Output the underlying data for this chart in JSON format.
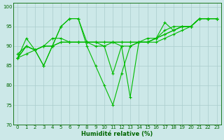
{
  "xlabel": "Humidité relative (%)",
  "ylabel": "",
  "bg_color": "#cce8e8",
  "grid_color": "#aacccc",
  "line_color": "#00bb00",
  "xlim": [
    -0.5,
    23.5
  ],
  "ylim": [
    70,
    101
  ],
  "yticks": [
    70,
    75,
    80,
    85,
    90,
    95,
    100
  ],
  "xticks": [
    0,
    1,
    2,
    3,
    4,
    5,
    6,
    7,
    8,
    9,
    10,
    11,
    12,
    13,
    14,
    15,
    16,
    17,
    18,
    19,
    20,
    21,
    22,
    23
  ],
  "lines": [
    [
      87,
      92,
      89,
      85,
      90,
      95,
      97,
      97,
      90,
      85,
      80,
      75,
      83,
      90,
      91,
      91,
      92,
      94,
      95,
      95,
      95,
      97,
      97,
      97
    ],
    [
      88,
      90,
      89,
      90,
      92,
      92,
      91,
      91,
      91,
      91,
      91,
      91,
      91,
      91,
      91,
      92,
      92,
      93,
      94,
      95,
      95,
      97,
      97,
      97
    ],
    [
      87,
      88,
      89,
      90,
      90,
      91,
      91,
      91,
      91,
      91,
      91,
      91,
      91,
      91,
      91,
      91,
      92,
      93,
      94,
      95,
      95,
      97,
      97,
      97
    ],
    [
      87,
      90,
      89,
      90,
      90,
      91,
      91,
      91,
      91,
      91,
      90,
      91,
      90,
      90,
      91,
      91,
      91,
      92,
      93,
      94,
      95,
      97,
      97,
      97
    ],
    [
      87,
      90,
      89,
      85,
      90,
      95,
      97,
      97,
      91,
      90,
      90,
      83,
      90,
      77,
      91,
      91,
      92,
      96,
      94,
      95,
      95,
      97,
      97,
      97
    ]
  ]
}
